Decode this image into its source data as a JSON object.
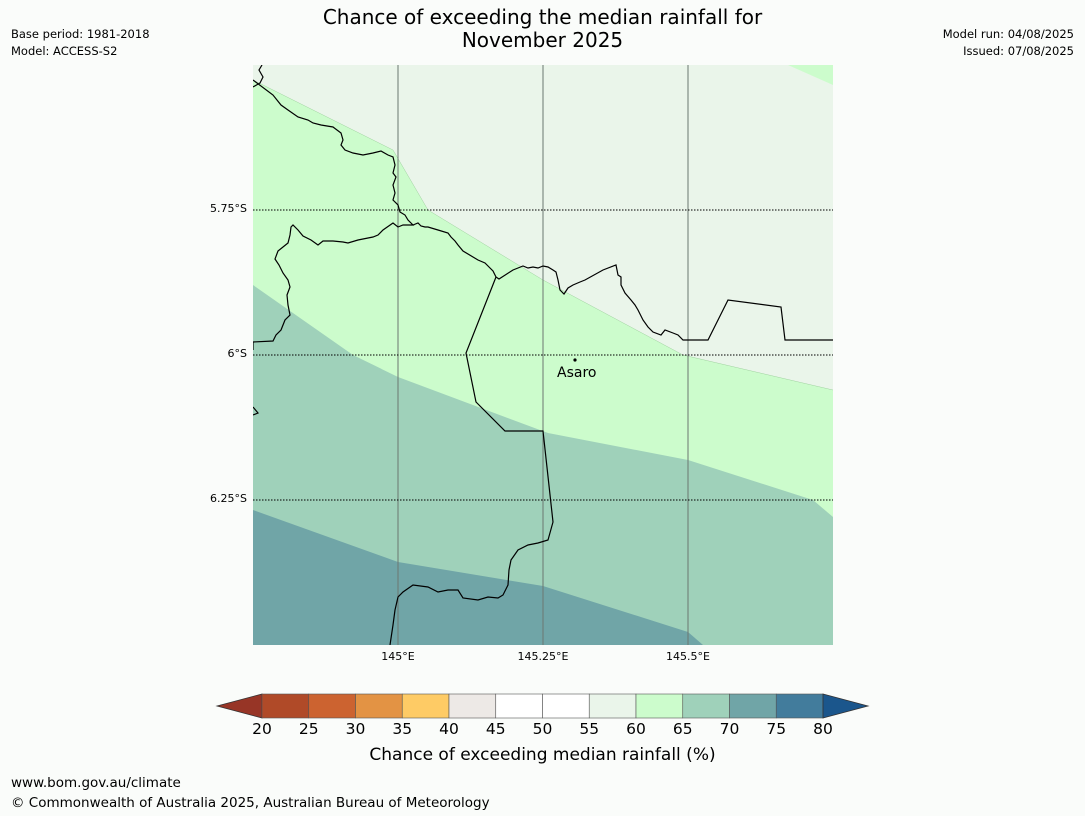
{
  "title": {
    "line1": "Chance of exceeding the median rainfall for",
    "line2": "November 2025"
  },
  "meta_left": {
    "base_period": "Base period: 1981-2018",
    "model": "Model: ACCESS-S2"
  },
  "meta_right": {
    "model_run": "Model run: 04/08/2025",
    "issued": "Issued: 07/08/2025"
  },
  "map": {
    "lat_labels": [
      "5.75°S",
      "6°S",
      "6.25°S"
    ],
    "lon_labels": [
      "145°E",
      "145.25°E",
      "145.5°E"
    ],
    "place": {
      "name": "Asaro"
    },
    "category_colors": {
      "55-60": "#eaf5ea",
      "60-65": "#ccfccc",
      "65-70": "#9fd1ba",
      "70-75": "#70a5a7"
    }
  },
  "colorbar": {
    "ticks": [
      "20",
      "25",
      "30",
      "35",
      "40",
      "45",
      "50",
      "55",
      "60",
      "65",
      "70",
      "75",
      "80"
    ],
    "under_color": "#973526",
    "over_color": "#1b568c",
    "colors": [
      "#b04a28",
      "#cc6330",
      "#e39344",
      "#fecb65",
      "#ede9e6",
      "#ffffff",
      "#ffffff",
      "#eaf5ea",
      "#ccfccc",
      "#9fd1ba",
      "#70a5a7",
      "#427c9c"
    ],
    "label": "Chance of exceeding median rainfall (%)"
  },
  "footer": {
    "url": "www.bom.gov.au/climate",
    "copyright": "© Commonwealth of Australia 2025, Australian Bureau of Meteorology"
  }
}
